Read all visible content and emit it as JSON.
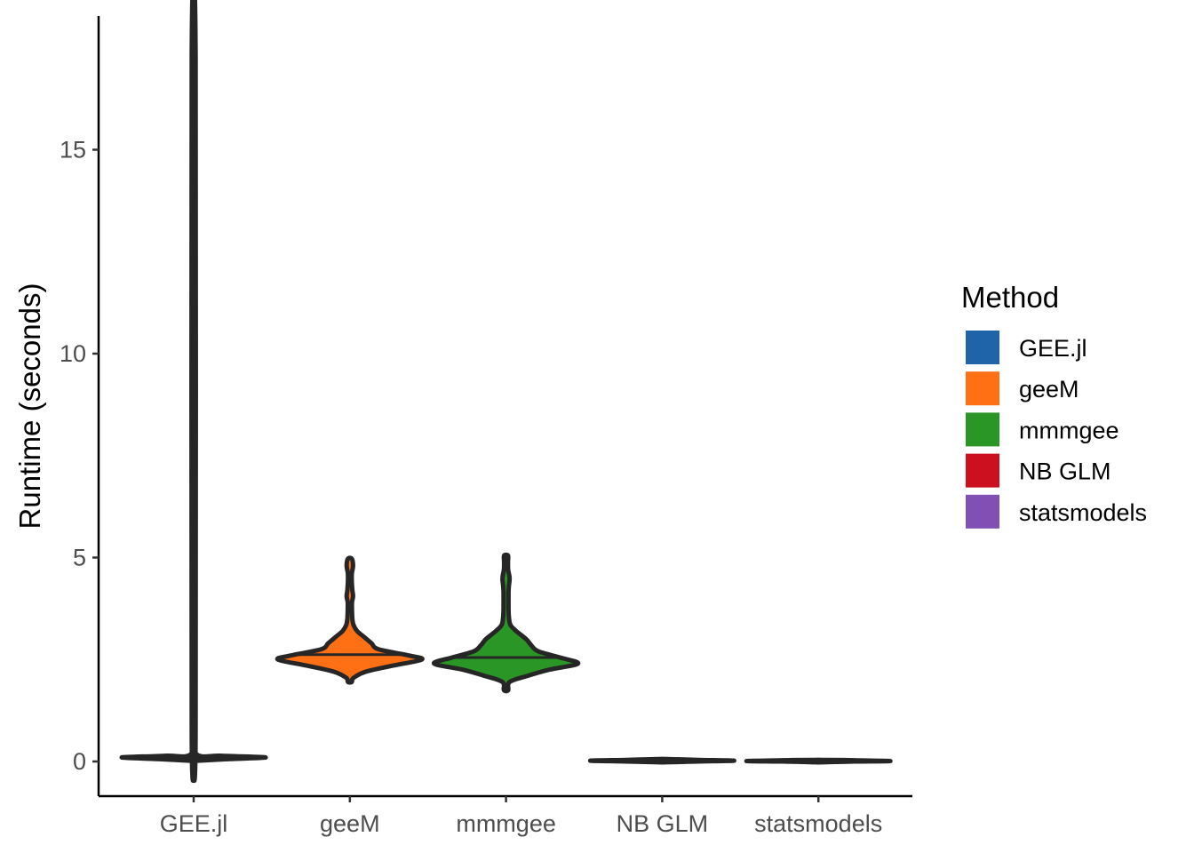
{
  "chart_data": {
    "type": "violin",
    "ylabel": "Runtime (seconds)",
    "xlabel": "",
    "ylim": [
      -0.85,
      18.0
    ],
    "yticks": [
      0,
      5,
      10,
      15
    ],
    "ytick_labels": [
      "0",
      "5",
      "10",
      "15"
    ],
    "categories": [
      "GEE.jl",
      "geeM",
      "mmmgee",
      "NB GLM",
      "statsmodels"
    ],
    "legend": {
      "title": "Method",
      "position": "right",
      "entries": [
        "GEE.jl",
        "geeM",
        "mmmgee",
        "NB GLM",
        "statsmodels"
      ]
    },
    "grid": false,
    "series": [
      {
        "category": "GEE.jl",
        "color": "#1f63a8",
        "min": 0.05,
        "max": 17.3,
        "median": 0.1,
        "density": [
          [
            0.02,
            0.06
          ],
          [
            0.06,
            0.5
          ],
          [
            0.1,
            1.0
          ],
          [
            0.14,
            0.4
          ],
          [
            0.2,
            0.012
          ],
          [
            1.0,
            0.009
          ],
          [
            17.3,
            0.009
          ]
        ]
      },
      {
        "category": "geeM",
        "color": "#ff6f14",
        "min": 1.95,
        "max": 4.97,
        "median": 2.62,
        "density": [
          [
            1.95,
            0.02
          ],
          [
            2.05,
            0.05
          ],
          [
            2.2,
            0.22
          ],
          [
            2.35,
            0.6
          ],
          [
            2.5,
            1.0
          ],
          [
            2.6,
            0.82
          ],
          [
            2.75,
            0.4
          ],
          [
            2.9,
            0.3
          ],
          [
            3.05,
            0.2
          ],
          [
            3.2,
            0.1
          ],
          [
            3.35,
            0.05
          ],
          [
            3.5,
            0.035
          ],
          [
            3.7,
            0.03
          ],
          [
            3.9,
            0.03
          ],
          [
            4.05,
            0.045
          ],
          [
            4.2,
            0.035
          ],
          [
            4.4,
            0.02
          ],
          [
            4.6,
            0.02
          ],
          [
            4.8,
            0.045
          ],
          [
            4.97,
            0.02
          ]
        ]
      },
      {
        "category": "mmmgee",
        "color": "#2a9625",
        "min": 1.75,
        "max": 5.05,
        "median": 2.55,
        "density": [
          [
            1.75,
            0.03
          ],
          [
            1.95,
            0.05
          ],
          [
            2.1,
            0.3
          ],
          [
            2.25,
            0.6
          ],
          [
            2.4,
            1.0
          ],
          [
            2.55,
            0.75
          ],
          [
            2.7,
            0.45
          ],
          [
            2.85,
            0.35
          ],
          [
            3.0,
            0.28
          ],
          [
            3.2,
            0.14
          ],
          [
            3.35,
            0.06
          ],
          [
            3.55,
            0.04
          ],
          [
            3.75,
            0.035
          ],
          [
            3.95,
            0.035
          ],
          [
            4.15,
            0.035
          ],
          [
            4.3,
            0.04
          ],
          [
            4.5,
            0.05
          ],
          [
            4.7,
            0.03
          ],
          [
            4.9,
            0.025
          ],
          [
            5.05,
            0.02
          ]
        ]
      },
      {
        "category": "NB GLM",
        "color": "#cc1020",
        "min": 0.0,
        "max": 0.06,
        "median": 0.02,
        "density": [
          [
            -0.02,
            0.05
          ],
          [
            0.0,
            0.5
          ],
          [
            0.02,
            1.0
          ],
          [
            0.04,
            0.5
          ],
          [
            0.06,
            0.05
          ]
        ]
      },
      {
        "category": "statsmodels",
        "color": "#8050b5",
        "min": 0.0,
        "max": 0.04,
        "median": 0.01,
        "density": [
          [
            -0.02,
            0.05
          ],
          [
            0.0,
            0.5
          ],
          [
            0.01,
            1.0
          ],
          [
            0.03,
            0.5
          ],
          [
            0.04,
            0.05
          ]
        ]
      }
    ]
  }
}
